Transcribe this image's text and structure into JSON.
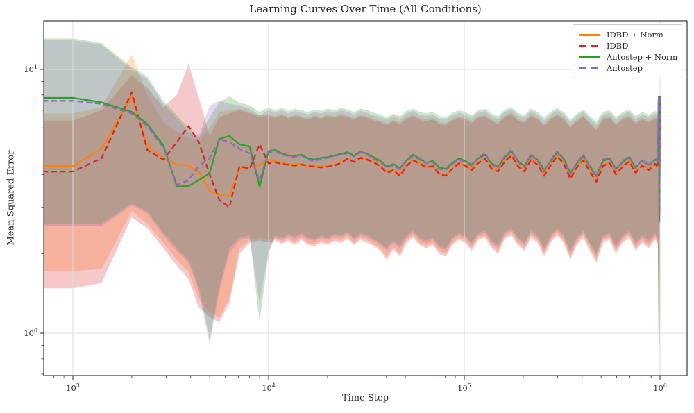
{
  "chart_data": {
    "type": "line",
    "title": "Learning Curves Over Time (All Conditions)",
    "xlabel": "Time Step",
    "ylabel": "Mean Squared Error",
    "xscale": "log",
    "yscale": "log",
    "xlim": [
      710,
      1374000
    ],
    "ylim": [
      0.69,
      15.3
    ],
    "x_tick_exponents": [
      3,
      4,
      5,
      6
    ],
    "y_tick_exponents": [
      0,
      1
    ],
    "grid": true,
    "legend_position": "upper right",
    "band_alpha": 0.25,
    "frame_color": "#262626",
    "grid_color": "#dcdcdc",
    "x": [
      700,
      1000,
      1400,
      2000,
      2400,
      2900,
      3400,
      3900,
      4400,
      5000,
      5600,
      6300,
      7100,
      8000,
      9000,
      10000,
      10800,
      11700,
      12600,
      13600,
      14700,
      15900,
      17200,
      18600,
      20100,
      21700,
      23400,
      25300,
      27300,
      29500,
      31900,
      34400,
      37200,
      40200,
      43400,
      46900,
      50600,
      54700,
      59100,
      63800,
      68900,
      74400,
      80400,
      86900,
      93800,
      101000,
      109000,
      118000,
      128000,
      138000,
      149000,
      161000,
      174000,
      188000,
      203000,
      219000,
      237000,
      256000,
      276000,
      298000,
      322000,
      348000,
      376000,
      406000,
      438000,
      473000,
      511000,
      552000,
      596000,
      644000,
      696000,
      751000,
      811000,
      876000,
      946000,
      975000,
      985000,
      993000,
      1000000
    ],
    "series": [
      {
        "name": "IDBD + Norm",
        "color": "#ff7f0e",
        "dash": false,
        "values": [
          4.3,
          4.3,
          5.0,
          7.9,
          5.15,
          4.6,
          4.35,
          4.33,
          4.1,
          3.45,
          3.35,
          3.3,
          4.2,
          4.25,
          4.35,
          4.55,
          4.5,
          4.42,
          4.38,
          4.35,
          4.38,
          4.32,
          4.3,
          4.28,
          4.3,
          4.35,
          4.45,
          4.6,
          4.5,
          4.65,
          4.58,
          4.48,
          4.32,
          4.1,
          4.18,
          4.0,
          4.32,
          4.55,
          4.42,
          4.28,
          4.32,
          4.05,
          3.98,
          4.22,
          4.42,
          4.35,
          4.2,
          4.45,
          4.6,
          4.25,
          4.12,
          4.5,
          4.75,
          4.35,
          4.15,
          4.58,
          4.4,
          4.0,
          4.35,
          4.7,
          4.45,
          3.9,
          4.28,
          4.55,
          4.15,
          3.8,
          4.35,
          4.45,
          4.05,
          4.3,
          4.5,
          4.1,
          4.35,
          4.2,
          4.4,
          4.3,
          7.5,
          2.8,
          7.6
        ],
        "band_lower": [
          1.72,
          1.72,
          1.75,
          2.9,
          2.6,
          2.2,
          1.9,
          1.7,
          1.35,
          1.2,
          1.15,
          1.35,
          2.1,
          2.25,
          2.3,
          2.25,
          2.3,
          2.22,
          2.28,
          2.2,
          2.3,
          2.2,
          2.18,
          2.25,
          2.2,
          2.28,
          2.25,
          2.32,
          2.2,
          2.3,
          2.25,
          2.18,
          2.1,
          1.95,
          2.12,
          2.0,
          2.25,
          2.35,
          2.2,
          2.15,
          2.2,
          2.05,
          2.0,
          2.2,
          2.3,
          2.25,
          2.1,
          2.3,
          2.35,
          2.15,
          2.05,
          2.32,
          2.4,
          2.2,
          2.1,
          2.35,
          2.25,
          2.0,
          2.25,
          2.4,
          2.25,
          1.95,
          2.2,
          2.35,
          2.1,
          1.9,
          2.25,
          2.3,
          2.05,
          2.25,
          2.35,
          2.1,
          2.25,
          2.15,
          2.3,
          2.2,
          0.88,
          0.88,
          2.5
        ],
        "band_upper": [
          6.8,
          6.8,
          7.2,
          11.4,
          8.0,
          6.3,
          5.8,
          5.5,
          5.3,
          6.0,
          6.9,
          7.0,
          7.1,
          6.9,
          6.7,
          6.8,
          6.65,
          6.8,
          6.6,
          6.75,
          6.65,
          6.55,
          6.7,
          6.6,
          6.75,
          6.65,
          6.8,
          6.7,
          6.55,
          6.75,
          6.65,
          6.5,
          6.4,
          6.25,
          6.45,
          6.3,
          6.6,
          6.75,
          6.55,
          6.45,
          6.55,
          6.3,
          6.25,
          6.5,
          6.65,
          6.55,
          6.35,
          6.65,
          6.75,
          6.45,
          6.3,
          6.7,
          6.85,
          6.5,
          6.35,
          6.75,
          6.55,
          6.2,
          6.55,
          6.8,
          6.55,
          6.1,
          6.45,
          6.7,
          6.3,
          6.0,
          6.55,
          6.65,
          6.25,
          6.55,
          6.7,
          6.3,
          6.55,
          6.4,
          6.6,
          6.55,
          8.0,
          5.8,
          8.0
        ]
      },
      {
        "name": "IDBD",
        "color": "#d62728",
        "dash": true,
        "values": [
          4.1,
          4.1,
          4.6,
          8.2,
          4.95,
          4.55,
          5.3,
          6.1,
          5.3,
          4.0,
          3.2,
          3.0,
          4.3,
          4.2,
          5.2,
          4.4,
          4.45,
          4.38,
          4.35,
          4.32,
          4.36,
          4.3,
          4.28,
          4.25,
          4.28,
          4.32,
          4.42,
          4.58,
          4.46,
          4.62,
          4.55,
          4.45,
          4.3,
          4.05,
          4.15,
          3.95,
          4.3,
          4.52,
          4.4,
          4.25,
          4.3,
          4.02,
          3.95,
          4.2,
          4.4,
          4.32,
          4.15,
          4.42,
          4.58,
          4.2,
          4.1,
          4.48,
          4.72,
          4.3,
          4.1,
          4.55,
          4.35,
          3.95,
          4.32,
          4.68,
          4.4,
          3.85,
          4.25,
          4.52,
          4.1,
          3.75,
          4.3,
          4.42,
          4.0,
          4.28,
          4.48,
          4.05,
          4.32,
          4.15,
          4.38,
          4.25,
          7.4,
          2.85,
          7.5
        ],
        "band_lower": [
          1.48,
          1.48,
          1.55,
          2.75,
          2.5,
          2.1,
          1.8,
          1.6,
          1.25,
          1.15,
          1.1,
          1.3,
          2.0,
          2.2,
          2.25,
          2.2,
          2.25,
          2.18,
          2.24,
          2.16,
          2.26,
          2.16,
          2.14,
          2.2,
          2.16,
          2.24,
          2.2,
          2.28,
          2.16,
          2.26,
          2.2,
          2.14,
          2.05,
          1.9,
          2.08,
          1.95,
          2.2,
          2.3,
          2.16,
          2.1,
          2.16,
          2.0,
          1.95,
          2.16,
          2.26,
          2.2,
          2.05,
          2.26,
          2.3,
          2.1,
          2.0,
          2.28,
          2.35,
          2.16,
          2.05,
          2.3,
          2.2,
          1.95,
          2.2,
          2.35,
          2.2,
          1.9,
          2.16,
          2.3,
          2.05,
          1.85,
          2.2,
          2.26,
          2.0,
          2.2,
          2.3,
          2.05,
          2.2,
          2.1,
          2.26,
          2.16,
          0.8,
          0.8,
          2.45
        ],
        "band_upper": [
          6.4,
          6.4,
          7.0,
          9.5,
          8.5,
          7.2,
          8.0,
          10.5,
          7.8,
          5.6,
          6.6,
          6.8,
          7.0,
          6.8,
          6.6,
          6.7,
          6.55,
          6.7,
          6.5,
          6.65,
          6.55,
          6.45,
          6.6,
          6.5,
          6.65,
          6.55,
          6.7,
          6.6,
          6.45,
          6.65,
          6.55,
          6.4,
          6.3,
          6.15,
          6.35,
          6.2,
          6.5,
          6.65,
          6.45,
          6.35,
          6.45,
          6.2,
          6.15,
          6.4,
          6.55,
          6.45,
          6.25,
          6.55,
          6.65,
          6.35,
          6.2,
          6.6,
          6.75,
          6.4,
          6.25,
          6.65,
          6.45,
          6.1,
          6.45,
          6.7,
          6.45,
          6.0,
          6.35,
          6.6,
          6.2,
          5.9,
          6.45,
          6.55,
          6.15,
          6.45,
          6.6,
          6.2,
          6.45,
          6.3,
          6.5,
          6.45,
          8.1,
          5.7,
          8.1
        ]
      },
      {
        "name": "Autostep + Norm",
        "color": "#2ca02c",
        "dash": false,
        "values": [
          7.8,
          7.8,
          7.5,
          6.9,
          6.2,
          5.15,
          3.6,
          3.62,
          3.8,
          4.05,
          5.45,
          5.6,
          5.2,
          5.1,
          3.6,
          4.9,
          4.95,
          4.8,
          4.72,
          4.7,
          4.75,
          4.6,
          4.55,
          4.62,
          4.65,
          4.72,
          4.78,
          4.85,
          4.7,
          4.88,
          4.78,
          4.65,
          4.5,
          4.28,
          4.38,
          4.22,
          4.52,
          4.75,
          4.6,
          4.42,
          4.5,
          4.25,
          4.2,
          4.42,
          4.6,
          4.5,
          4.35,
          4.6,
          4.75,
          4.4,
          4.28,
          4.65,
          4.9,
          4.5,
          4.3,
          4.72,
          4.55,
          4.15,
          4.48,
          4.85,
          4.6,
          4.05,
          4.4,
          4.7,
          4.3,
          3.95,
          4.5,
          4.6,
          4.2,
          4.45,
          4.65,
          4.25,
          4.5,
          4.35,
          4.55,
          4.5,
          7.8,
          2.7,
          7.9
        ],
        "band_lower": [
          2.6,
          2.6,
          2.6,
          3.1,
          2.9,
          2.4,
          2.1,
          1.9,
          1.5,
          0.95,
          1.5,
          2.1,
          2.3,
          2.35,
          1.1,
          2.0,
          2.35,
          2.3,
          2.38,
          2.32,
          2.4,
          2.3,
          2.28,
          2.35,
          2.3,
          2.38,
          2.35,
          2.42,
          2.3,
          2.4,
          2.35,
          2.28,
          2.2,
          2.1,
          2.25,
          2.15,
          2.35,
          2.45,
          2.3,
          2.25,
          2.3,
          2.15,
          2.1,
          2.3,
          2.4,
          2.35,
          2.2,
          2.4,
          2.45,
          2.25,
          2.15,
          2.42,
          2.5,
          2.3,
          2.2,
          2.45,
          2.35,
          2.1,
          2.35,
          2.5,
          2.35,
          2.05,
          2.3,
          2.45,
          2.2,
          2.0,
          2.35,
          2.4,
          2.15,
          2.35,
          2.45,
          2.2,
          2.35,
          2.25,
          2.4,
          2.3,
          0.9,
          0.9,
          2.6
        ],
        "band_upper": [
          13.1,
          13.1,
          12.6,
          10.2,
          9.4,
          7.6,
          6.7,
          6.0,
          5.5,
          6.6,
          7.5,
          7.9,
          7.5,
          7.3,
          6.9,
          7.2,
          7.0,
          7.15,
          6.95,
          7.1,
          7.0,
          6.9,
          7.05,
          6.95,
          7.1,
          7.0,
          7.15,
          7.05,
          6.9,
          7.1,
          7.0,
          6.85,
          6.75,
          6.6,
          6.8,
          6.65,
          6.95,
          7.1,
          6.9,
          6.8,
          6.9,
          6.65,
          6.6,
          6.85,
          7.0,
          6.9,
          6.7,
          7.0,
          7.1,
          6.8,
          6.65,
          7.05,
          7.2,
          6.85,
          6.7,
          7.1,
          6.9,
          6.55,
          6.9,
          7.15,
          6.9,
          6.45,
          6.8,
          7.05,
          6.65,
          6.35,
          6.9,
          7.0,
          6.6,
          6.9,
          7.05,
          6.65,
          6.9,
          6.75,
          6.95,
          6.9,
          8.3,
          6.0,
          8.3
        ]
      },
      {
        "name": "Autostep",
        "color": "#9467bd",
        "dash": true,
        "values": [
          7.6,
          7.6,
          7.4,
          6.8,
          6.1,
          5.05,
          3.65,
          3.8,
          4.3,
          4.6,
          5.45,
          5.3,
          5.0,
          4.8,
          3.8,
          4.85,
          4.9,
          4.75,
          4.7,
          4.65,
          4.72,
          4.55,
          4.5,
          4.58,
          4.62,
          4.7,
          4.75,
          4.8,
          4.68,
          4.85,
          4.75,
          4.6,
          4.45,
          4.25,
          4.32,
          4.18,
          4.5,
          4.7,
          4.55,
          4.4,
          4.45,
          4.2,
          4.15,
          4.38,
          4.55,
          4.45,
          4.3,
          4.65,
          4.8,
          4.35,
          4.22,
          4.7,
          4.95,
          4.45,
          4.25,
          4.78,
          4.5,
          4.1,
          4.52,
          4.9,
          4.55,
          4.0,
          4.45,
          4.75,
          4.25,
          3.9,
          4.55,
          4.65,
          4.15,
          4.5,
          4.7,
          4.2,
          4.55,
          4.3,
          4.6,
          4.45,
          7.9,
          2.65,
          7.8
        ],
        "band_lower": [
          2.55,
          2.55,
          2.55,
          3.05,
          2.85,
          2.35,
          2.05,
          1.85,
          1.45,
          0.9,
          1.45,
          2.0,
          2.25,
          2.3,
          1.3,
          2.05,
          2.3,
          2.25,
          2.33,
          2.28,
          2.35,
          2.26,
          2.24,
          2.3,
          2.26,
          2.33,
          2.3,
          2.38,
          2.26,
          2.35,
          2.3,
          2.24,
          2.16,
          2.06,
          2.2,
          2.1,
          2.3,
          2.4,
          2.26,
          2.2,
          2.26,
          2.1,
          2.06,
          2.26,
          2.35,
          2.3,
          2.16,
          2.35,
          2.4,
          2.2,
          2.1,
          2.38,
          2.45,
          2.26,
          2.16,
          2.4,
          2.3,
          2.06,
          2.3,
          2.45,
          2.3,
          2.0,
          2.26,
          2.4,
          2.16,
          1.96,
          2.3,
          2.35,
          2.1,
          2.3,
          2.4,
          2.16,
          2.3,
          2.2,
          2.35,
          2.26,
          0.92,
          0.92,
          2.55
        ],
        "band_upper": [
          12.9,
          12.9,
          12.4,
          10.0,
          9.2,
          7.4,
          6.5,
          5.8,
          5.6,
          7.3,
          7.6,
          7.4,
          7.3,
          7.1,
          6.7,
          7.0,
          6.85,
          7.0,
          6.8,
          6.95,
          6.85,
          6.75,
          6.9,
          6.8,
          6.95,
          6.85,
          7.0,
          6.9,
          6.75,
          6.95,
          6.85,
          6.7,
          6.6,
          6.45,
          6.65,
          6.5,
          6.8,
          6.95,
          6.75,
          6.65,
          6.75,
          6.5,
          6.45,
          6.7,
          6.85,
          6.75,
          6.55,
          6.85,
          6.95,
          6.65,
          6.5,
          6.9,
          7.05,
          6.7,
          6.55,
          6.95,
          6.75,
          6.4,
          6.75,
          7.0,
          6.75,
          6.3,
          6.65,
          6.9,
          6.5,
          6.2,
          6.75,
          6.85,
          6.45,
          6.75,
          6.9,
          6.5,
          6.75,
          6.6,
          6.8,
          6.75,
          8.2,
          5.9,
          8.2
        ]
      }
    ]
  }
}
